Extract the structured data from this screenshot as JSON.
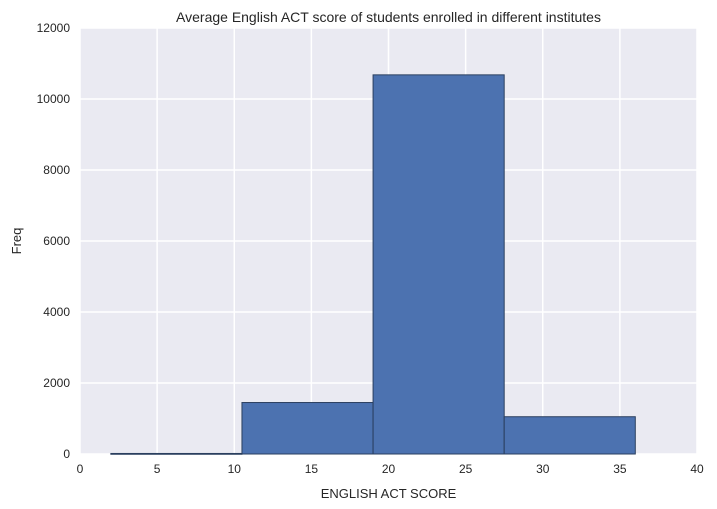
{
  "chart_data": {
    "type": "bar",
    "title": "Average English ACT score of students enrolled in different institutes",
    "xlabel": "ENGLISH ACT SCORE",
    "ylabel": "Freq",
    "xlim": [
      0,
      40
    ],
    "ylim": [
      0,
      12000
    ],
    "xticks": [
      0,
      5,
      10,
      15,
      20,
      25,
      30,
      35,
      40
    ],
    "yticks": [
      0,
      2000,
      4000,
      6000,
      8000,
      10000,
      12000
    ],
    "grid": true,
    "bins": [
      {
        "start": 2.0,
        "end": 10.5,
        "value": 15
      },
      {
        "start": 10.5,
        "end": 19.0,
        "value": 1450
      },
      {
        "start": 19.0,
        "end": 27.5,
        "value": 10680
      },
      {
        "start": 27.5,
        "end": 36.0,
        "value": 1050
      }
    ],
    "colors": {
      "bar": "#4c72b0",
      "bar_edge": "#2a3f5f",
      "plot_background": "#eaeaf2",
      "grid": "#ffffff"
    }
  }
}
